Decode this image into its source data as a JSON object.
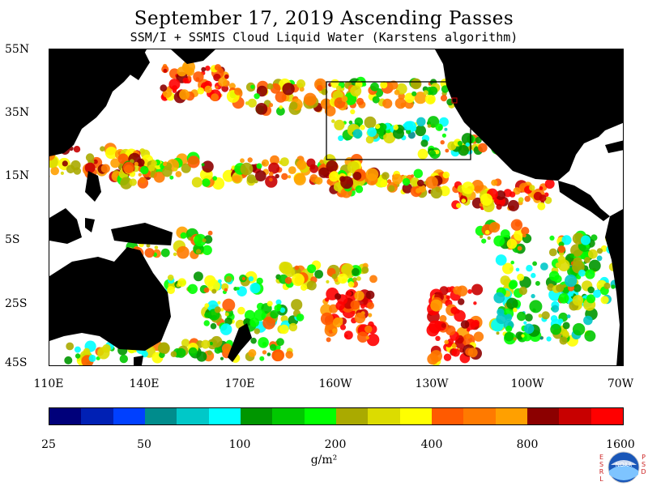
{
  "title": "September 17, 2019  Ascending Passes",
  "subtitle": "SSM/I + SSMIS Cloud Liquid Water (Karstens algorithm)",
  "map": {
    "lat_labels": [
      "55N",
      "35N",
      "15N",
      "5S",
      "25S",
      "45S"
    ],
    "lon_labels": [
      "110E",
      "140E",
      "170E",
      "160W",
      "130W",
      "100W",
      "70W"
    ],
    "land_color": "#000000",
    "no_data_color": "#ffffff"
  },
  "colorbar": {
    "colors": [
      "#00007a",
      "#0020b4",
      "#0040ff",
      "#008c8c",
      "#00c8c8",
      "#00ffff",
      "#009600",
      "#00c800",
      "#00ff00",
      "#aaaa00",
      "#dcdc00",
      "#ffff00",
      "#ff5a00",
      "#ff7a00",
      "#ffa000",
      "#8c0000",
      "#c80000",
      "#ff0000"
    ],
    "labels": [
      "25",
      "50",
      "100",
      "200",
      "400",
      "800",
      "1600"
    ],
    "units": "g/m²"
  },
  "logo": {
    "left_text": "ESRL",
    "right_text": "PSD",
    "center_text": "NOAA"
  }
}
